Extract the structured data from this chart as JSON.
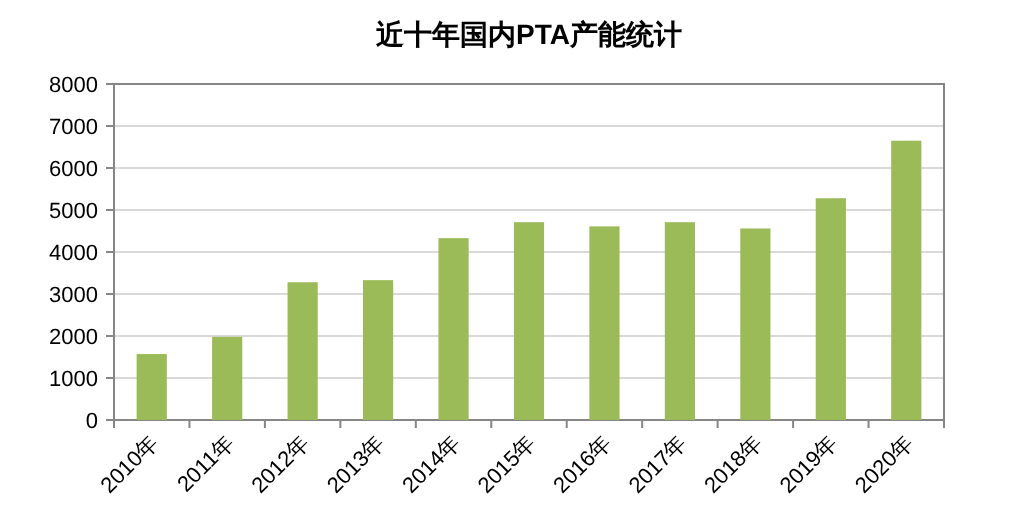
{
  "chart_data": {
    "type": "bar",
    "title": "近十年国内PTA产能统计",
    "categories": [
      "2010年",
      "2011年",
      "2012年",
      "2013年",
      "2014年",
      "2015年",
      "2016年",
      "2017年",
      "2018年",
      "2019年",
      "2020年"
    ],
    "values": [
      1570,
      1980,
      3280,
      3330,
      4330,
      4710,
      4610,
      4710,
      4560,
      5280,
      6650
    ],
    "color": "#9bbb59",
    "ylim": [
      0,
      8000
    ],
    "yticks": [
      0,
      1000,
      2000,
      3000,
      4000,
      5000,
      6000,
      7000,
      8000
    ],
    "grid": "y"
  }
}
